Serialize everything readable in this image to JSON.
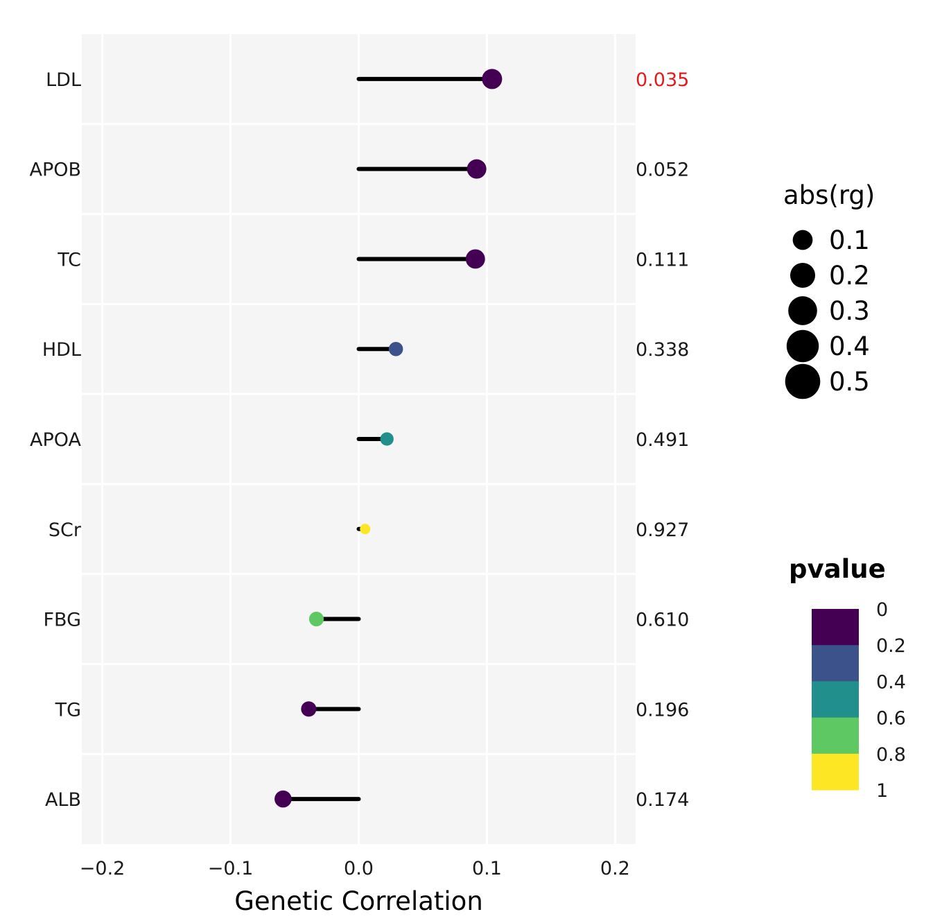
{
  "chart_data": {
    "type": "lollipop",
    "title": "",
    "xlabel": "Genetic Correlation",
    "ylabel": "",
    "xlim": [
      -0.216,
      0.216
    ],
    "x_ticks": [
      -0.2,
      -0.1,
      0.0,
      0.1,
      0.2
    ],
    "x_tick_labels": [
      "−0.2",
      "−0.1",
      "0.0",
      "0.1",
      "0.2"
    ],
    "categories": [
      "LDL",
      "APOB",
      "TC",
      "HDL",
      "APOA",
      "SCr",
      "FBG",
      "TG",
      "ALB"
    ],
    "rg": [
      0.104,
      0.092,
      0.091,
      0.029,
      0.022,
      0.005,
      -0.033,
      -0.039,
      -0.059
    ],
    "pvalue": [
      0.035,
      0.052,
      0.111,
      0.338,
      0.491,
      0.927,
      0.61,
      0.196,
      0.174
    ],
    "pvalue_labels": [
      "0.035",
      "0.052",
      "0.111",
      "0.338",
      "0.491",
      "0.927",
      "0.610",
      "0.196",
      "0.174"
    ],
    "pvalue_label_colors": [
      "#e41a1c",
      "#1a1a1a",
      "#1a1a1a",
      "#1a1a1a",
      "#1a1a1a",
      "#1a1a1a",
      "#1a1a1a",
      "#1a1a1a",
      "#1a1a1a"
    ],
    "point_colors": [
      "#440154",
      "#440154",
      "#440154",
      "#3b528b",
      "#21908c",
      "#fde725",
      "#5ec962",
      "#440154",
      "#440154"
    ],
    "legend_size": {
      "title": "abs(rg)",
      "values": [
        0.1,
        0.2,
        0.3,
        0.4,
        0.5
      ],
      "labels": [
        "0.1",
        "0.2",
        "0.3",
        "0.4",
        "0.5"
      ]
    },
    "legend_color": {
      "title": "pvalue",
      "labels": [
        "0",
        "0.2",
        "0.4",
        "0.6",
        "0.8",
        "1"
      ],
      "colors": [
        "#440154",
        "#3b528b",
        "#21908c",
        "#5ec962",
        "#fde725"
      ]
    },
    "panel_background": "#f5f5f5",
    "grid_color": "#ffffff",
    "segment_color": "#000000"
  }
}
